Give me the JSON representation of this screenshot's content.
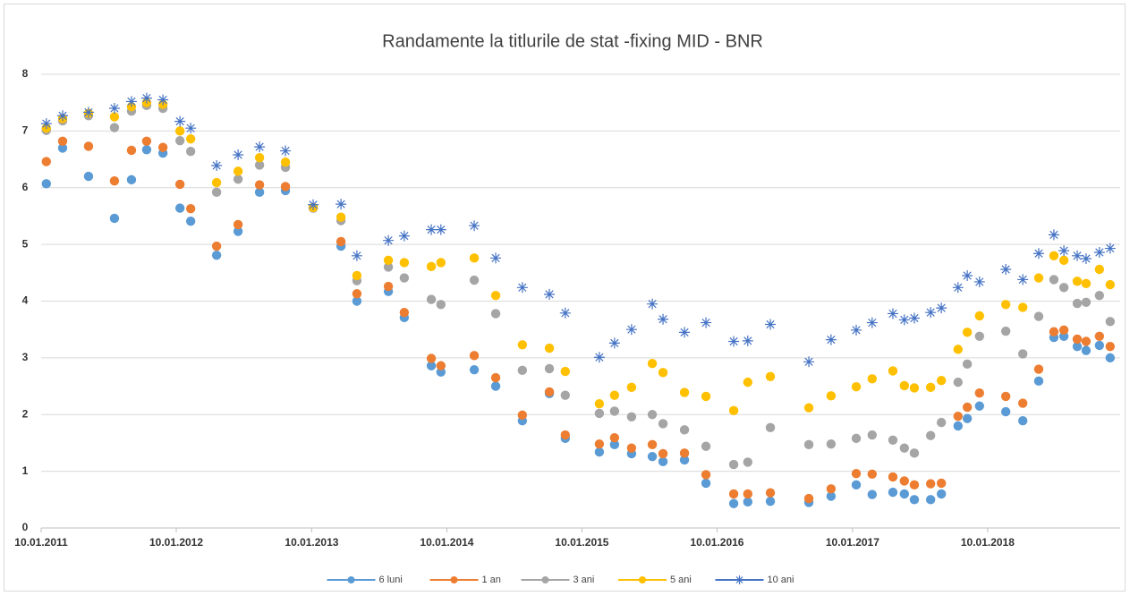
{
  "chart_data": {
    "type": "scatter",
    "title": "Randamente la titlurile de stat -fixing MID - BNR",
    "x": [
      40567,
      40611,
      40681,
      40751,
      40797,
      40838,
      40882,
      40928,
      40957,
      41027,
      41085,
      41143,
      41213,
      41288,
      41363,
      41406,
      41491,
      41534,
      41607,
      41633,
      41723,
      41781,
      41853,
      41926,
      41969,
      42061,
      42102,
      42148,
      42204,
      42233,
      42291,
      42349,
      42424,
      42462,
      42523,
      42627,
      42687,
      42755,
      42798,
      42854,
      42885,
      42912,
      42956,
      42985,
      43030,
      43055,
      43088,
      43159,
      43205,
      43248,
      43289,
      43316,
      43352,
      43376,
      43412,
      43441
    ],
    "series": [
      {
        "name": "6 luni",
        "color": "#5b9bd5",
        "marker": "circle",
        "values": [
          6.07,
          6.7,
          6.2,
          5.46,
          6.14,
          6.67,
          6.61,
          5.64,
          5.41,
          4.81,
          5.23,
          5.92,
          5.95,
          5.64,
          4.97,
          4.0,
          4.17,
          3.71,
          2.86,
          2.75,
          2.79,
          2.5,
          1.89,
          2.37,
          1.58,
          1.34,
          1.47,
          1.31,
          1.26,
          1.17,
          1.2,
          0.79,
          0.43,
          0.46,
          0.47,
          0.45,
          0.56,
          0.76,
          0.59,
          0.63,
          0.6,
          0.5,
          0.5,
          0.6,
          1.8,
          1.93,
          2.15,
          2.05,
          1.89,
          2.59,
          3.36,
          3.38,
          3.2,
          3.13,
          3.22,
          3.0
        ]
      },
      {
        "name": "1 an",
        "color": "#ed7d31",
        "marker": "circle",
        "values": [
          6.46,
          6.82,
          6.73,
          6.12,
          6.66,
          6.82,
          6.71,
          6.06,
          5.63,
          4.97,
          5.35,
          6.05,
          6.02,
          5.65,
          5.05,
          4.13,
          4.26,
          3.8,
          2.99,
          2.86,
          3.04,
          2.65,
          1.99,
          2.4,
          1.64,
          1.48,
          1.59,
          1.41,
          1.47,
          1.31,
          1.32,
          0.94,
          0.6,
          0.6,
          0.62,
          0.52,
          0.69,
          0.96,
          0.95,
          0.9,
          0.83,
          0.76,
          0.78,
          0.79,
          1.97,
          2.13,
          2.38,
          2.32,
          2.2,
          2.8,
          3.46,
          3.49,
          3.33,
          3.29,
          3.38,
          3.2
        ]
      },
      {
        "name": "3 ani",
        "color": "#a5a5a5",
        "marker": "circle",
        "values": [
          7.01,
          7.18,
          7.27,
          7.06,
          7.35,
          7.45,
          7.4,
          6.83,
          6.64,
          5.92,
          6.15,
          6.4,
          6.36,
          5.64,
          5.42,
          4.36,
          4.6,
          4.41,
          4.03,
          3.94,
          4.37,
          3.78,
          2.78,
          2.81,
          2.34,
          2.02,
          2.06,
          1.96,
          2.0,
          1.84,
          1.73,
          1.44,
          1.12,
          1.16,
          1.77,
          1.47,
          1.48,
          1.58,
          1.64,
          1.55,
          1.41,
          1.32,
          1.63,
          1.86,
          2.57,
          2.89,
          3.38,
          3.47,
          3.07,
          3.73,
          4.38,
          4.24,
          3.96,
          3.98,
          4.1,
          3.64
        ]
      },
      {
        "name": "5 ani",
        "color": "#ffc000",
        "marker": "circle",
        "values": [
          7.05,
          7.22,
          7.31,
          7.25,
          7.43,
          7.5,
          7.47,
          7.0,
          6.86,
          6.09,
          6.29,
          6.53,
          6.45,
          5.65,
          5.48,
          4.45,
          4.72,
          4.68,
          4.61,
          4.68,
          4.76,
          4.1,
          3.23,
          3.17,
          2.76,
          2.19,
          2.34,
          2.48,
          2.9,
          2.74,
          2.39,
          2.32,
          2.07,
          2.57,
          2.67,
          2.12,
          2.33,
          2.49,
          2.63,
          2.77,
          2.51,
          2.47,
          2.48,
          2.6,
          3.15,
          3.45,
          3.74,
          3.94,
          3.89,
          4.41,
          4.8,
          4.72,
          4.35,
          4.31,
          4.56,
          4.29
        ]
      },
      {
        "name": "10 ani",
        "color": "#4472c4",
        "marker": "star",
        "values": [
          7.13,
          7.27,
          7.33,
          7.4,
          7.52,
          7.58,
          7.55,
          7.17,
          7.05,
          6.39,
          6.58,
          6.72,
          6.65,
          5.7,
          5.71,
          4.8,
          5.07,
          5.15,
          5.26,
          5.26,
          5.33,
          4.76,
          4.24,
          4.12,
          3.79,
          3.01,
          3.26,
          3.5,
          3.95,
          3.68,
          3.45,
          3.62,
          3.29,
          3.3,
          3.59,
          2.93,
          3.32,
          3.49,
          3.62,
          3.78,
          3.67,
          3.7,
          3.8,
          3.88,
          4.24,
          4.45,
          4.34,
          4.56,
          4.38,
          4.84,
          5.17,
          4.89,
          4.8,
          4.75,
          4.86,
          4.93
        ]
      }
    ],
    "xlim": [
      40553,
      43468
    ],
    "xticks": [
      {
        "value": 40553,
        "label": "10.01.2011"
      },
      {
        "value": 40918,
        "label": "10.01.2012"
      },
      {
        "value": 41284,
        "label": "10.01.2013"
      },
      {
        "value": 41649,
        "label": "10.01.2014"
      },
      {
        "value": 42014,
        "label": "10.01.2015"
      },
      {
        "value": 42379,
        "label": "10.01.2016"
      },
      {
        "value": 42745,
        "label": "10.01.2017"
      },
      {
        "value": 43110,
        "label": "10.01.2018"
      }
    ],
    "ylim": [
      0,
      8
    ],
    "yticks": [
      0,
      1,
      2,
      3,
      4,
      5,
      6,
      7,
      8
    ],
    "grid": true,
    "legend": "bottom"
  }
}
